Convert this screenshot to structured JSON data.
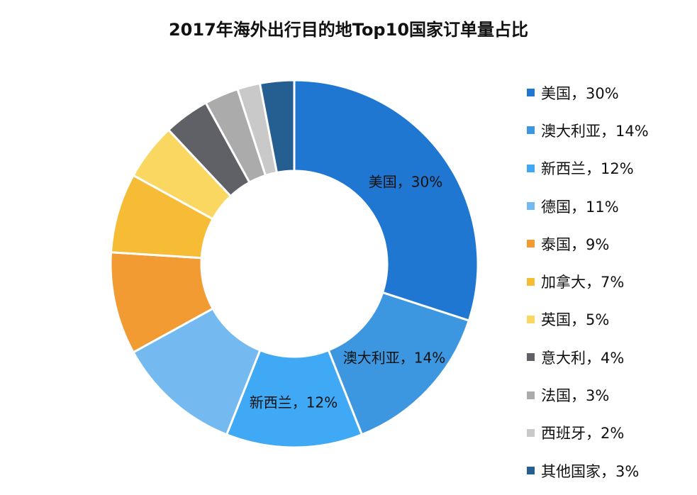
{
  "chart_data": {
    "type": "pie",
    "donut": true,
    "title": "2017年海外出行目的地Top10国家订单量占比",
    "legend_position": "right",
    "slices": [
      {
        "name": "美国",
        "value": 30,
        "label": "美国，30%",
        "color": "#1f77d2",
        "show_label": true
      },
      {
        "name": "澳大利亚",
        "value": 14,
        "label": "澳大利亚，14%",
        "color": "#3c97e0",
        "show_label": true
      },
      {
        "name": "新西兰",
        "value": 12,
        "label": "新西兰，12%",
        "color": "#3fa9f5",
        "show_label": true
      },
      {
        "name": "德国",
        "value": 11,
        "label": "德国，11%",
        "color": "#75b9f1",
        "show_label": false
      },
      {
        "name": "泰国",
        "value": 9,
        "label": "泰国，9%",
        "color": "#f29b32",
        "show_label": false
      },
      {
        "name": "加拿大",
        "value": 7,
        "label": "加拿大，7%",
        "color": "#f6bc35",
        "show_label": false
      },
      {
        "name": "英国",
        "value": 5,
        "label": "英国，5%",
        "color": "#fad761",
        "show_label": false
      },
      {
        "name": "意大利",
        "value": 4,
        "label": "意大利，4%",
        "color": "#5f6166",
        "show_label": false
      },
      {
        "name": "法国",
        "value": 3,
        "label": "法国，3%",
        "color": "#ababab",
        "show_label": false
      },
      {
        "name": "西班牙",
        "value": 2,
        "label": "西班牙，2%",
        "color": "#c9c9c9",
        "show_label": false
      },
      {
        "name": "其他国家",
        "value": 3,
        "label": "其他国家，3%",
        "color": "#255e91",
        "show_label": false
      }
    ]
  }
}
